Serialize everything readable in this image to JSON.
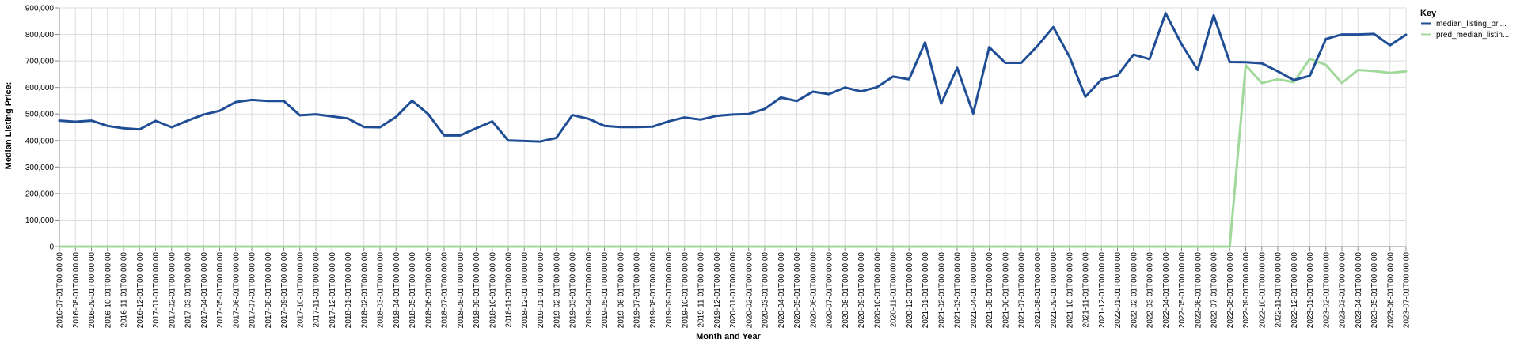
{
  "chart_data": {
    "type": "line",
    "xlabel": "Month and Year",
    "ylabel": "Median Listing Price:",
    "ylim": [
      0,
      900000
    ],
    "yticks": [
      "0",
      "100,000",
      "200,000",
      "300,000",
      "400,000",
      "500,000",
      "600,000",
      "700,000",
      "800,000",
      "900,000"
    ],
    "grid": true,
    "legend": {
      "title": "Key",
      "position": "top-right"
    },
    "x": [
      "2016-07-01T00:00:00",
      "2016-08-01T00:00:00",
      "2016-09-01T00:00:00",
      "2016-10-01T00:00:00",
      "2016-11-01T00:00:00",
      "2016-12-01T00:00:00",
      "2017-01-01T00:00:00",
      "2017-02-01T00:00:00",
      "2017-03-01T00:00:00",
      "2017-04-01T00:00:00",
      "2017-05-01T00:00:00",
      "2017-06-01T00:00:00",
      "2017-07-01T00:00:00",
      "2017-08-01T00:00:00",
      "2017-09-01T00:00:00",
      "2017-10-01T00:00:00",
      "2017-11-01T00:00:00",
      "2017-12-01T00:00:00",
      "2018-01-01T00:00:00",
      "2018-02-01T00:00:00",
      "2018-03-01T00:00:00",
      "2018-04-01T00:00:00",
      "2018-05-01T00:00:00",
      "2018-06-01T00:00:00",
      "2018-07-01T00:00:00",
      "2018-08-01T00:00:00",
      "2018-09-01T00:00:00",
      "2018-10-01T00:00:00",
      "2018-11-01T00:00:00",
      "2018-12-01T00:00:00",
      "2019-01-01T00:00:00",
      "2019-02-01T00:00:00",
      "2019-03-01T00:00:00",
      "2019-04-01T00:00:00",
      "2019-05-01T00:00:00",
      "2019-06-01T00:00:00",
      "2019-07-01T00:00:00",
      "2019-08-01T00:00:00",
      "2019-09-01T00:00:00",
      "2019-10-01T00:00:00",
      "2019-11-01T00:00:00",
      "2019-12-01T00:00:00",
      "2020-01-01T00:00:00",
      "2020-02-01T00:00:00",
      "2020-03-01T00:00:00",
      "2020-04-01T00:00:00",
      "2020-05-01T00:00:00",
      "2020-06-01T00:00:00",
      "2020-07-01T00:00:00",
      "2020-08-01T00:00:00",
      "2020-09-01T00:00:00",
      "2020-10-01T00:00:00",
      "2020-11-01T00:00:00",
      "2020-12-01T00:00:00",
      "2021-01-01T00:00:00",
      "2021-02-01T00:00:00",
      "2021-03-01T00:00:00",
      "2021-04-01T00:00:00",
      "2021-05-01T00:00:00",
      "2021-06-01T00:00:00",
      "2021-07-01T00:00:00",
      "2021-08-01T00:00:00",
      "2021-09-01T00:00:00",
      "2021-10-01T00:00:00",
      "2021-11-01T00:00:00",
      "2021-12-01T00:00:00",
      "2022-01-01T00:00:00",
      "2022-02-01T00:00:00",
      "2022-03-01T00:00:00",
      "2022-04-01T00:00:00",
      "2022-05-01T00:00:00",
      "2022-06-01T00:00:00",
      "2022-07-01T00:00:00",
      "2022-08-01T00:00:00",
      "2022-09-01T00:00:00",
      "2022-10-01T00:00:00",
      "2022-11-01T00:00:00",
      "2022-12-01T00:00:00",
      "2023-01-01T00:00:00",
      "2023-02-01T00:00:00",
      "2023-03-01T00:00:00",
      "2023-04-01T00:00:00",
      "2023-05-01T00:00:00",
      "2023-06-01T00:00:00",
      "2023-07-01T00:00:00"
    ],
    "series": [
      {
        "name": "median_listing_pri...",
        "color": "#1f4e96",
        "values": [
          475000,
          471000,
          475000,
          455000,
          446000,
          442000,
          474000,
          450000,
          475000,
          498000,
          512000,
          545000,
          553000,
          549000,
          549000,
          495000,
          499000,
          491000,
          483000,
          451000,
          450000,
          489000,
          550000,
          500000,
          419000,
          419000,
          446000,
          472000,
          400000,
          398000,
          396000,
          410000,
          496000,
          482000,
          455000,
          451000,
          451000,
          452000,
          472000,
          487000,
          479000,
          493000,
          498000,
          500000,
          519000,
          562000,
          549000,
          584000,
          575000,
          600000,
          585000,
          601000,
          641000,
          631000,
          770000,
          539000,
          674000,
          502000,
          752000,
          693000,
          693000,
          756000,
          828000,
          716000,
          565000,
          630000,
          645000,
          724000,
          707000,
          880000,
          763000,
          666000,
          872000,
          696000,
          695000,
          691000,
          661000,
          628000,
          644000,
          783000,
          800000,
          800000,
          802000,
          759000,
          799000
        ]
      },
      {
        "name": "pred_median_listin...",
        "color": "#a1d99b",
        "values": [
          0,
          0,
          0,
          0,
          0,
          0,
          0,
          0,
          0,
          0,
          0,
          0,
          0,
          0,
          0,
          0,
          0,
          0,
          0,
          0,
          0,
          0,
          0,
          0,
          0,
          0,
          0,
          0,
          0,
          0,
          0,
          0,
          0,
          0,
          0,
          0,
          0,
          0,
          0,
          0,
          0,
          0,
          0,
          0,
          0,
          0,
          0,
          0,
          0,
          0,
          0,
          0,
          0,
          0,
          0,
          0,
          0,
          0,
          0,
          0,
          0,
          0,
          0,
          0,
          0,
          0,
          0,
          0,
          0,
          0,
          0,
          0,
          0,
          0,
          684000,
          617000,
          631000,
          620000,
          708000,
          685000,
          617000,
          666000,
          662000,
          655000,
          661000
        ]
      }
    ]
  }
}
